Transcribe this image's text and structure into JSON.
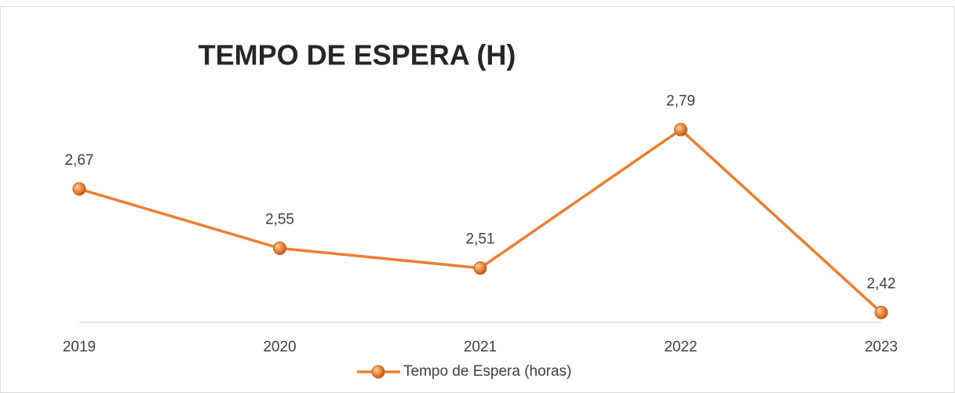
{
  "chart_data": {
    "type": "line",
    "title": "TEMPO DE ESPERA (H)",
    "categories": [
      "2019",
      "2020",
      "2021",
      "2022",
      "2023"
    ],
    "series": [
      {
        "name": "Tempo de Espera (horas)",
        "color": "#ED7D31",
        "values": [
          2.67,
          2.55,
          2.51,
          2.79,
          2.42
        ],
        "value_labels": [
          "2,67",
          "2,55",
          "2,51",
          "2,79",
          "2,42"
        ]
      }
    ],
    "ylim": [
      2.4,
      2.8
    ],
    "legend": "bottom"
  }
}
